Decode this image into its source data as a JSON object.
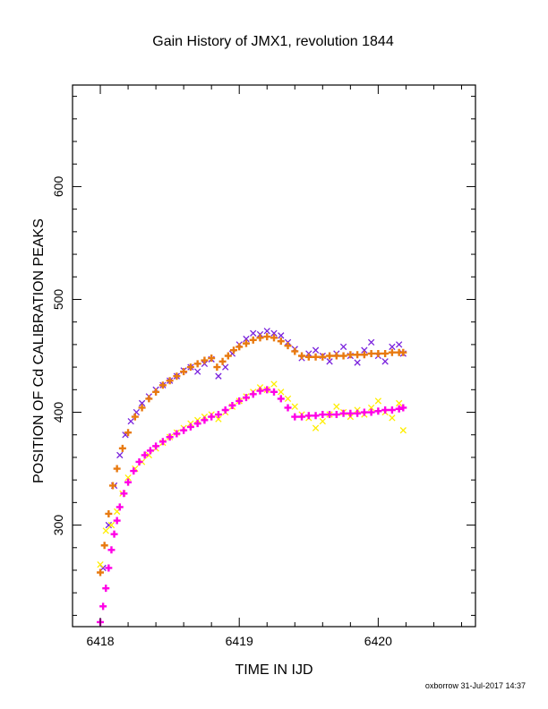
{
  "chart_data": {
    "type": "scatter",
    "title": "Gain History of JMX1, revolution 1844",
    "xlabel": "TIME IN IJD",
    "ylabel": "POSITION OF Cd CALIBRATION PEAKS",
    "xlim": [
      6417.8,
      6420.7
    ],
    "ylim": [
      210,
      690
    ],
    "xticks": [
      6418,
      6419,
      6420
    ],
    "xtick_labels": [
      "6418",
      "6419",
      "6420"
    ],
    "yticks": [
      300,
      400,
      500,
      600
    ],
    "ytick_labels": [
      "300",
      "400",
      "500",
      "600"
    ],
    "grid": false,
    "legend": "none",
    "series": [
      {
        "marker": "x",
        "color": "#7a22dd",
        "x": [
          6418.02,
          6418.06,
          6418.1,
          6418.14,
          6418.18,
          6418.22,
          6418.26,
          6418.3,
          6418.35,
          6418.4,
          6418.45,
          6418.5,
          6418.55,
          6418.6,
          6418.65,
          6418.7,
          6418.75,
          6418.8,
          6418.85,
          6418.9,
          6418.95,
          6419.0,
          6419.05,
          6419.1,
          6419.15,
          6419.2,
          6419.25,
          6419.3,
          6419.35,
          6419.4,
          6419.45,
          6419.5,
          6419.55,
          6419.6,
          6419.65,
          6419.7,
          6419.75,
          6419.8,
          6419.85,
          6419.9,
          6419.95,
          6420.0,
          6420.05,
          6420.1,
          6420.15,
          6420.18
        ],
        "y": [
          262,
          300,
          335,
          362,
          380,
          392,
          400,
          408,
          414,
          420,
          424,
          428,
          432,
          437,
          440,
          436,
          443,
          447,
          432,
          440,
          452,
          460,
          465,
          470,
          469,
          472,
          470,
          468,
          462,
          456,
          448,
          452,
          455,
          450,
          445,
          452,
          458,
          450,
          444,
          455,
          462,
          450,
          445,
          458,
          460,
          452
        ]
      },
      {
        "marker": "+",
        "color": "#e87a10",
        "x": [
          6418.0,
          6418.03,
          6418.06,
          6418.09,
          6418.12,
          6418.16,
          6418.2,
          6418.25,
          6418.3,
          6418.35,
          6418.4,
          6418.45,
          6418.5,
          6418.55,
          6418.6,
          6418.65,
          6418.7,
          6418.75,
          6418.8,
          6418.84,
          6418.88,
          6418.92,
          6418.96,
          6419.0,
          6419.05,
          6419.1,
          6419.15,
          6419.2,
          6419.25,
          6419.3,
          6419.35,
          6419.4,
          6419.45,
          6419.5,
          6419.55,
          6419.6,
          6419.65,
          6419.7,
          6419.75,
          6419.8,
          6419.85,
          6419.9,
          6419.95,
          6420.0,
          6420.05,
          6420.1,
          6420.15,
          6420.18
        ],
        "y": [
          258,
          282,
          310,
          335,
          350,
          368,
          382,
          396,
          404,
          412,
          418,
          424,
          428,
          432,
          436,
          440,
          443,
          446,
          448,
          440,
          445,
          450,
          455,
          458,
          461,
          464,
          466,
          467,
          466,
          463,
          459,
          454,
          450,
          449,
          449,
          449,
          450,
          450,
          450,
          451,
          451,
          451,
          452,
          452,
          452,
          453,
          453,
          453
        ]
      },
      {
        "marker": "x",
        "color": "#ffee00",
        "x": [
          6418.0,
          6418.04,
          6418.08,
          6418.12,
          6418.16,
          6418.2,
          6418.25,
          6418.3,
          6418.35,
          6418.4,
          6418.45,
          6418.5,
          6418.55,
          6418.6,
          6418.65,
          6418.7,
          6418.75,
          6418.8,
          6418.85,
          6418.9,
          6418.95,
          6419.0,
          6419.05,
          6419.1,
          6419.15,
          6419.2,
          6419.25,
          6419.3,
          6419.35,
          6419.4,
          6419.45,
          6419.5,
          6419.55,
          6419.6,
          6419.65,
          6419.7,
          6419.75,
          6419.8,
          6419.85,
          6419.9,
          6419.95,
          6420.0,
          6420.05,
          6420.1,
          6420.15,
          6420.18
        ],
        "y": [
          265,
          295,
          300,
          312,
          328,
          342,
          350,
          356,
          362,
          368,
          373,
          378,
          382,
          386,
          390,
          393,
          396,
          398,
          394,
          400,
          405,
          410,
          414,
          418,
          422,
          420,
          425,
          418,
          412,
          405,
          398,
          395,
          386,
          392,
          398,
          405,
          400,
          396,
          402,
          398,
          404,
          410,
          400,
          395,
          408,
          384
        ]
      },
      {
        "marker": "+",
        "color": "#ff00e6",
        "x": [
          6418.0,
          6418.02,
          6418.04,
          6418.06,
          6418.08,
          6418.1,
          6418.12,
          6418.14,
          6418.17,
          6418.2,
          6418.24,
          6418.28,
          6418.32,
          6418.36,
          6418.4,
          6418.45,
          6418.5,
          6418.55,
          6418.6,
          6418.65,
          6418.7,
          6418.75,
          6418.8,
          6418.85,
          6418.9,
          6418.95,
          6419.0,
          6419.05,
          6419.1,
          6419.15,
          6419.2,
          6419.25,
          6419.3,
          6419.35,
          6419.4,
          6419.45,
          6419.5,
          6419.55,
          6419.6,
          6419.65,
          6419.7,
          6419.75,
          6419.8,
          6419.85,
          6419.9,
          6419.95,
          6420.0,
          6420.05,
          6420.1,
          6420.15,
          6420.18
        ],
        "y": [
          214,
          228,
          244,
          262,
          278,
          292,
          304,
          316,
          328,
          338,
          348,
          356,
          362,
          366,
          370,
          374,
          378,
          381,
          384,
          387,
          390,
          393,
          396,
          398,
          402,
          406,
          410,
          413,
          416,
          419,
          420,
          418,
          412,
          404,
          396,
          396,
          397,
          397,
          398,
          398,
          398,
          399,
          399,
          399,
          400,
          400,
          401,
          402,
          402,
          403,
          404
        ]
      }
    ]
  },
  "footer": {
    "text": "oxborrow 31-Jul-2017 14:37"
  }
}
